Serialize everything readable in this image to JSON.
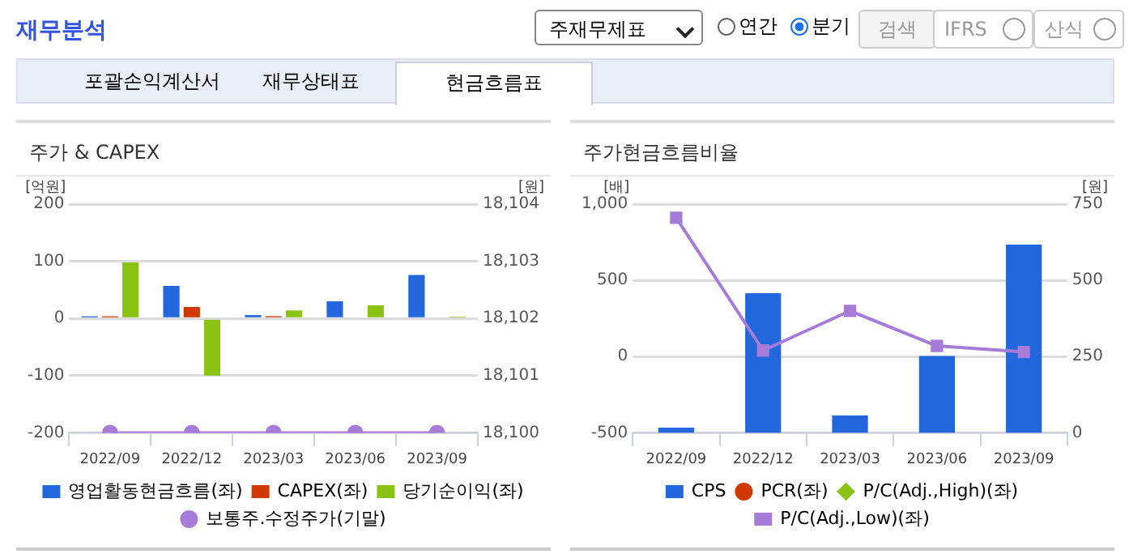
{
  "chart_data": [
    {
      "type": "bar",
      "title": "주가 & CAPEX",
      "ylabel": "[억원]",
      "y2label": "[원]",
      "annotations": [
        "재무분석",
        "주재무제표",
        "연간",
        "분기",
        "검색",
        "IFRS",
        "산식",
        "포괄손익계산서",
        "재무상태표",
        "현금흐름표"
      ],
      "categories": [
        "2022/09",
        "2022/12",
        "2023/03",
        "2023/06",
        "2023/09"
      ],
      "series": [
        {
          "name": "영업활동현금흐름(좌)",
          "color": "#2267dc",
          "values": [
            4,
            57,
            6,
            30,
            76
          ]
        },
        {
          "name": "CAPEX(좌)",
          "color": "#d03a00",
          "values": [
            4,
            20,
            4,
            null,
            null
          ]
        },
        {
          "name": "당기순이익(좌)",
          "color": "#8ac314",
          "values": [
            98,
            -100,
            14,
            23,
            3
          ]
        },
        {
          "name": "보통주.수정주가(기말)",
          "color": "#a77cd9",
          "type": "line",
          "axis": "y2",
          "marker": "circle",
          "values": [
            18100,
            18100,
            18100,
            18100,
            18100
          ]
        }
      ],
      "ylim": [
        -200,
        200
      ],
      "yticks": [
        -200,
        -100,
        0,
        100,
        200
      ],
      "y2lim": [
        18100,
        18104
      ],
      "y2ticks": [
        {
          "value": 18100,
          "label": "18,100"
        },
        {
          "value": 18101,
          "label": "18,101"
        },
        {
          "value": 18102,
          "label": "18,102"
        },
        {
          "value": 18103,
          "label": "18,103"
        },
        {
          "value": 18104,
          "label": "18,104"
        }
      ],
      "grid": "y",
      "legend": "bottom"
    },
    {
      "type": "bar",
      "title": "주가현금흐름비율",
      "ylabel": "[배]",
      "y2label": "[원]",
      "categories": [
        "2022/09",
        "2022/12",
        "2023/03",
        "2023/06",
        "2023/09"
      ],
      "series": [
        {
          "name": "CPS",
          "color": "#2267dc",
          "axis": "y2",
          "values": [
            17,
            458,
            57,
            252,
            617
          ]
        },
        {
          "name": "PCR(좌)",
          "color": "#d03a00",
          "type": "line",
          "marker": "circle",
          "values": [
            null,
            null,
            null,
            null,
            null
          ]
        },
        {
          "name": "P/C(Adj.,High)(좌)",
          "color": "#8ac314",
          "type": "line",
          "marker": "diamond",
          "values": [
            null,
            null,
            null,
            null,
            null
          ]
        },
        {
          "name": "P/C(Adj.,Low)(좌)",
          "color": "#a77cd9",
          "type": "line",
          "marker": "square",
          "values": [
            910,
            40,
            300,
            70,
            30
          ]
        }
      ],
      "ylim": [
        -500,
        1000
      ],
      "yticks": [
        -500,
        0,
        500,
        {
          "value": 1000,
          "label": "1,000"
        }
      ],
      "y2lim": [
        0,
        750
      ],
      "y2ticks": [
        0,
        250,
        500,
        750
      ],
      "grid": "y",
      "legend": "bottom"
    }
  ]
}
